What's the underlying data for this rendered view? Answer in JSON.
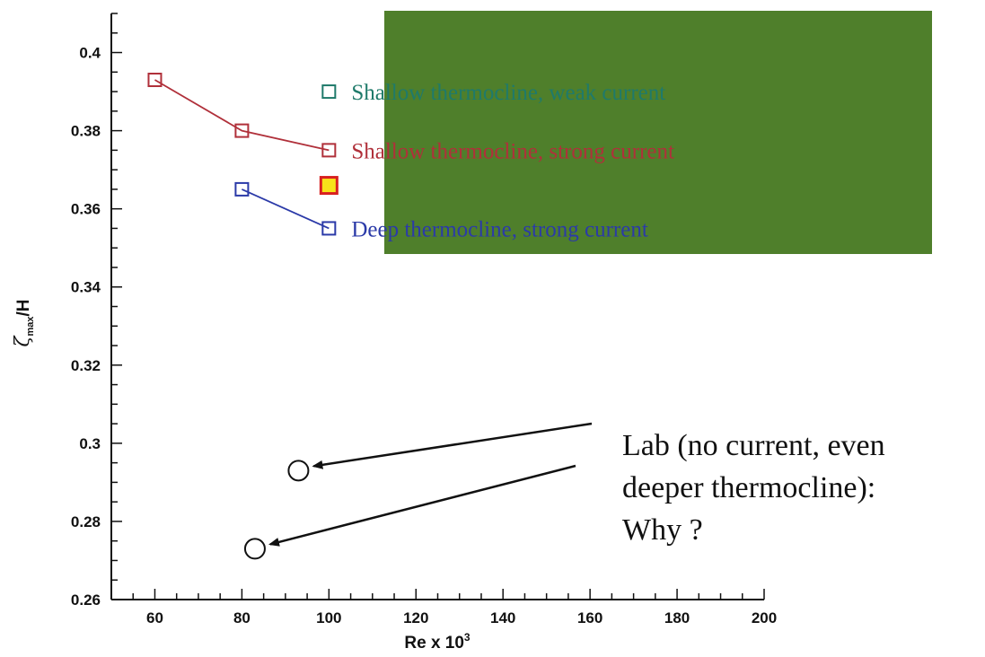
{
  "chart_data": {
    "type": "line",
    "title": "",
    "xlabel": "Re x 10",
    "xlabel_sup": "3",
    "ylabel": "ζ",
    "ylabel_sub": "max",
    "ylabel_tail": "/H",
    "xlim": [
      50,
      200
    ],
    "ylim": [
      0.26,
      0.41
    ],
    "x_ticks": [
      60,
      80,
      100,
      120,
      140,
      160,
      180,
      200
    ],
    "x_tick_labels": [
      "60",
      "80",
      "100",
      "120",
      "140",
      "160",
      "180",
      "200"
    ],
    "y_ticks": [
      0.26,
      0.28,
      0.3,
      0.32,
      0.34,
      0.36,
      0.38,
      0.4
    ],
    "y_tick_labels": [
      "0.26",
      "0.28",
      "0.3",
      "0.32",
      "0.34",
      "0.36",
      "0.38",
      "0.4"
    ],
    "legend_position": "top-right",
    "legend_background": "#4f7f2b",
    "series": [
      {
        "name": "Shallow thermocline, weak current",
        "color": "#1f7a6a",
        "marker": "square",
        "line": false,
        "x": [
          100
        ],
        "y": [
          0.39
        ]
      },
      {
        "name": "Shallow thermocline, strong current",
        "color": "#b0303a",
        "marker": "square",
        "line": true,
        "x": [
          60,
          80,
          100
        ],
        "y": [
          0.393,
          0.38,
          0.375
        ]
      },
      {
        "name": "Deep thermocline, strong current",
        "color": "#2b3aa8",
        "marker": "square",
        "line": true,
        "x": [
          80,
          100
        ],
        "y": [
          0.365,
          0.355
        ]
      },
      {
        "name": "",
        "color": "#d82020",
        "fill": "#f7e21a",
        "marker": "square-filled",
        "line": false,
        "x": [
          100
        ],
        "y": [
          0.366
        ]
      },
      {
        "name": "",
        "color": "#111111",
        "marker": "circle",
        "line": false,
        "x": [
          93,
          83
        ],
        "y": [
          0.293,
          0.273
        ]
      }
    ],
    "annotation": {
      "lines": [
        "Lab (no current, even",
        "deeper thermocline):",
        "Why ?"
      ],
      "arrow_color": "#111111"
    }
  }
}
